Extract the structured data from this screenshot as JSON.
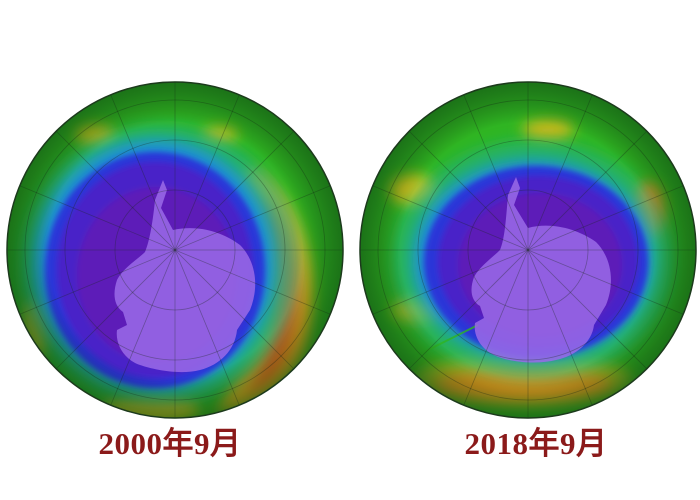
{
  "panels": [
    {
      "label": "2000年9月"
    },
    {
      "label": "2018年9月"
    }
  ],
  "colors": {
    "caption": "#8b1a1a",
    "ozone_hole_core": "#5c1aa8",
    "ozone_low": "#3a1fc4",
    "ozone_mid": "#1cb38e",
    "ozone_background": "#2db81f",
    "ozone_high": "#e86b1a",
    "continent": "#9b6be6"
  }
}
